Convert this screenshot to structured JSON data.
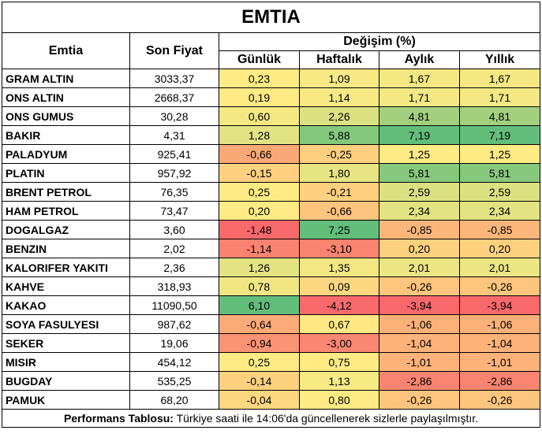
{
  "title": "EMTIA",
  "headers": {
    "emtia": "Emtia",
    "son_fiyat": "Son Fiyat",
    "degisim": "Değişim (%)",
    "gunluk": "Günlük",
    "haftalik": "Haftalık",
    "aylik": "Aylık",
    "yillik": "Yıllık"
  },
  "rows": [
    {
      "name": "GRAM ALTIN",
      "price": "3033,37",
      "values": [
        "0,23",
        "1,09",
        "1,67",
        "1,67"
      ]
    },
    {
      "name": "ONS ALTIN",
      "price": "2668,37",
      "values": [
        "0,19",
        "1,14",
        "1,71",
        "1,71"
      ]
    },
    {
      "name": "ONS GUMUS",
      "price": "30,28",
      "values": [
        "0,60",
        "2,26",
        "4,81",
        "4,81"
      ]
    },
    {
      "name": "BAKIR",
      "price": "4,31",
      "values": [
        "1,28",
        "5,88",
        "7,19",
        "7,19"
      ]
    },
    {
      "name": "PALADYUM",
      "price": "925,41",
      "values": [
        "-0,66",
        "-0,25",
        "1,25",
        "1,25"
      ]
    },
    {
      "name": "PLATIN",
      "price": "957,92",
      "values": [
        "-0,15",
        "1,80",
        "5,81",
        "5,81"
      ]
    },
    {
      "name": "BRENT PETROL",
      "price": "76,35",
      "values": [
        "0,25",
        "-0,21",
        "2,59",
        "2,59"
      ]
    },
    {
      "name": "HAM PETROL",
      "price": "73,47",
      "values": [
        "0,20",
        "-0,66",
        "2,34",
        "2,34"
      ]
    },
    {
      "name": "DOGALGAZ",
      "price": "3,60",
      "values": [
        "-1,48",
        "7,25",
        "-0,85",
        "-0,85"
      ]
    },
    {
      "name": "BENZIN",
      "price": "2,02",
      "values": [
        "-1,14",
        "-3,10",
        "0,20",
        "0,20"
      ]
    },
    {
      "name": "KALORIFER YAKITI",
      "price": "2,36",
      "values": [
        "1,26",
        "1,35",
        "2,01",
        "2,01"
      ]
    },
    {
      "name": "KAHVE",
      "price": "318,93",
      "values": [
        "0,78",
        "0,09",
        "-0,26",
        "-0,26"
      ]
    },
    {
      "name": "KAKAO",
      "price": "11090,50",
      "values": [
        "6,10",
        "-4,12",
        "-3,94",
        "-3,94"
      ]
    },
    {
      "name": "SOYA FASULYESI",
      "price": "987,62",
      "values": [
        "-0,64",
        "0,67",
        "-1,06",
        "-1,06"
      ]
    },
    {
      "name": "SEKER",
      "price": "19,06",
      "values": [
        "-0,94",
        "-3,00",
        "-1,04",
        "-1,04"
      ]
    },
    {
      "name": "MISIR",
      "price": "454,12",
      "values": [
        "0,25",
        "0,75",
        "-1,01",
        "-1,01"
      ]
    },
    {
      "name": "BUGDAY",
      "price": "535,25",
      "values": [
        "-0,14",
        "1,13",
        "-2,86",
        "-2,86"
      ]
    },
    {
      "name": "PAMUK",
      "price": "68,20",
      "values": [
        "-0,04",
        "0,80",
        "-0,26",
        "-0,26"
      ]
    }
  ],
  "footer": {
    "bold": "Performans Tablosu:",
    "text": " Türkiye saati ile 14:06'da güncellenerek sizlerle paylaşılmıştır."
  }
}
